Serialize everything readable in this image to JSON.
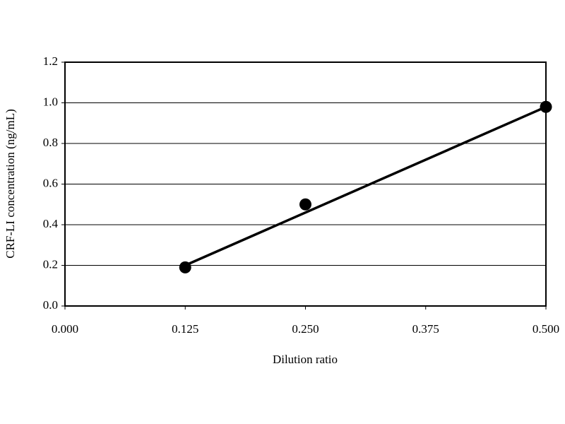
{
  "chart_data": {
    "type": "scatter",
    "x_label": "Dilution ratio",
    "y_label": "CRF-LI concentration (ng/mL)",
    "x": [
      0.125,
      0.25,
      0.5
    ],
    "values": [
      0.19,
      0.5,
      0.98
    ],
    "color": "#000000",
    "trendline": {
      "x": [
        0.125,
        0.5
      ],
      "values": [
        0.2,
        0.98
      ]
    },
    "xlim": [
      0,
      0.5
    ],
    "xticks": [
      {
        "value": 0,
        "label": "0.000"
      },
      0.125,
      {
        "value": 0.25,
        "label": "0.250"
      },
      0.375,
      {
        "value": 0.5,
        "label": "0.500"
      }
    ],
    "ylim": [
      0,
      1.2
    ],
    "yticks": [
      {
        "value": 0,
        "label": "0.0"
      },
      0.2,
      0.4,
      0.6,
      0.8,
      {
        "value": 1,
        "label": "1.0"
      },
      1.2
    ],
    "grid": true
  }
}
